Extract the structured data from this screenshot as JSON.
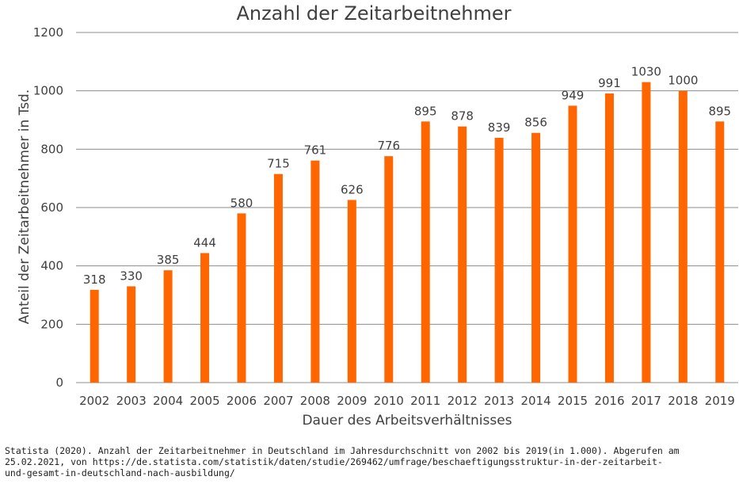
{
  "chart_data": {
    "type": "bar",
    "title": "Anzahl der Zeitarbeitnehmer",
    "xlabel": "Dauer des Arbeitsverhältnisses",
    "ylabel": "Anteil der Zeitarbeitnehmer in Tsd.",
    "categories": [
      "2002",
      "2003",
      "2004",
      "2005",
      "2006",
      "2007",
      "2008",
      "2009",
      "2010",
      "2011",
      "2012",
      "2013",
      "2014",
      "2015",
      "2016",
      "2017",
      "2018",
      "2019"
    ],
    "values": [
      318,
      330,
      385,
      444,
      580,
      715,
      761,
      626,
      776,
      895,
      878,
      839,
      856,
      949,
      991,
      1030,
      1000,
      895
    ],
    "ylim": [
      0,
      1200
    ],
    "yticks": [
      0,
      200,
      400,
      600,
      800,
      1000,
      1200
    ],
    "grid": true,
    "legend": "none",
    "bar_color": "#ff6600",
    "text_color": "#404040",
    "grid_color": "#8c8c8c"
  },
  "source": {
    "line1": "Statista (2020). Anzahl der Zeitarbeitnehmer  in Deutschland im Jahresdurchschnitt  von 2002 bis 2019(in 1.000). Abgerufen am",
    "line2": "25.02.2021,  von https://de.statista.com/statistik/daten/studie/269462/umfrage/beschaeftigungsstruktur-in-der-zeitarbeit-",
    "line3": "und-gesamt-in-deutschland-nach-ausbildung/"
  }
}
